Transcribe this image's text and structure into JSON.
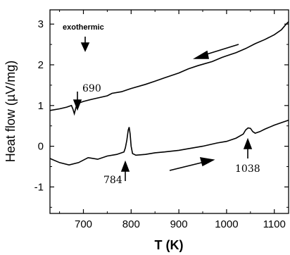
{
  "chart_data": {
    "type": "line",
    "xlabel": "T (K)",
    "ylabel": "Heat flow (µV/mg)",
    "xlim": [
      630,
      1130
    ],
    "ylim": [
      -1.65,
      3.35
    ],
    "x_ticks": [
      700,
      800,
      900,
      1000,
      1100
    ],
    "y_ticks": [
      -1,
      0,
      1,
      2,
      3
    ],
    "grid": false,
    "series": [
      {
        "color": "#000000",
        "direction": "cooling",
        "x": [
          630,
          650,
          665,
          675,
          678,
          681,
          685,
          690,
          700,
          720,
          750,
          760,
          780,
          800,
          830,
          850,
          870,
          900,
          920,
          940,
          970,
          990,
          1000,
          1020,
          1040,
          1060,
          1080,
          1100,
          1115,
          1125,
          1130
        ],
        "y": [
          0.88,
          0.92,
          0.96,
          1.0,
          0.92,
          0.8,
          0.98,
          1.06,
          1.1,
          1.16,
          1.24,
          1.3,
          1.34,
          1.42,
          1.52,
          1.6,
          1.68,
          1.8,
          1.9,
          1.98,
          2.08,
          2.18,
          2.22,
          2.3,
          2.4,
          2.52,
          2.62,
          2.74,
          2.86,
          3.0,
          3.06
        ]
      },
      {
        "color": "#000000",
        "direction": "heating",
        "x": [
          630,
          650,
          670,
          690,
          710,
          730,
          750,
          770,
          785,
          788,
          791,
          794,
          796,
          798,
          800,
          803,
          810,
          830,
          850,
          870,
          900,
          920,
          950,
          980,
          1000,
          1020,
          1035,
          1040,
          1045,
          1050,
          1055,
          1060,
          1070,
          1080,
          1100,
          1115,
          1130
        ],
        "y": [
          -0.3,
          -0.4,
          -0.46,
          -0.4,
          -0.28,
          -0.32,
          -0.24,
          -0.2,
          -0.14,
          -0.04,
          0.15,
          0.4,
          0.47,
          0.3,
          0.0,
          -0.18,
          -0.22,
          -0.2,
          -0.16,
          -0.14,
          -0.1,
          -0.06,
          0.0,
          0.08,
          0.12,
          0.2,
          0.3,
          0.4,
          0.45,
          0.44,
          0.36,
          0.32,
          0.36,
          0.42,
          0.52,
          0.58,
          0.64
        ]
      }
    ],
    "annotations": [
      {
        "text": "exothermic",
        "style": "bold"
      },
      {
        "text": "690",
        "x": 683,
        "y": 0.82
      },
      {
        "text": "784",
        "x": 790,
        "y": -0.16
      },
      {
        "text": "1038",
        "x": 1040,
        "y": 0.34
      }
    ]
  }
}
